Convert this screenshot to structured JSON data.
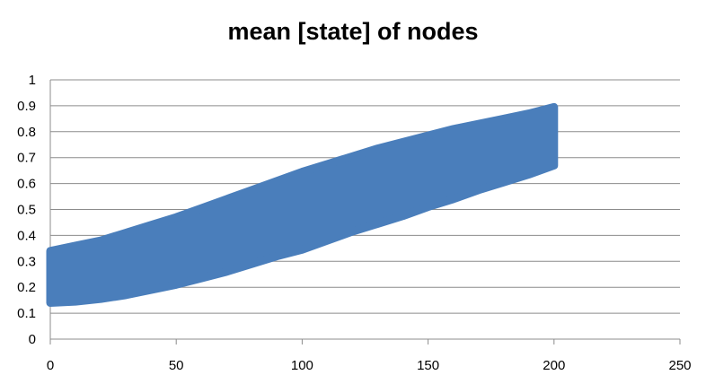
{
  "chart_data": {
    "type": "area",
    "title": "mean [state] of nodes",
    "xlabel": "",
    "ylabel": "",
    "xlim": [
      0,
      250
    ],
    "ylim": [
      0,
      1
    ],
    "x_ticks": [
      0,
      50,
      100,
      150,
      200,
      250
    ],
    "y_ticks": [
      0,
      0.1,
      0.2,
      0.3,
      0.4,
      0.5,
      0.6,
      0.7,
      0.8,
      0.9,
      1
    ],
    "x_tick_labels": [
      "0",
      "50",
      "100",
      "150",
      "200",
      "250"
    ],
    "y_tick_labels": [
      "0",
      "0.1",
      "0.2",
      "0.3",
      "0.4",
      "0.5",
      "0.6",
      "0.7",
      "0.8",
      "0.9",
      "1"
    ],
    "grid": "horizontal",
    "legend": "none",
    "series_color": "#4a7ebb",
    "band": {
      "x": [
        0,
        10,
        20,
        30,
        40,
        50,
        60,
        70,
        80,
        90,
        100,
        110,
        120,
        130,
        140,
        150,
        160,
        170,
        180,
        190,
        200
      ],
      "upper": [
        0.34,
        0.36,
        0.38,
        0.41,
        0.44,
        0.47,
        0.505,
        0.54,
        0.575,
        0.61,
        0.645,
        0.675,
        0.705,
        0.735,
        0.76,
        0.785,
        0.81,
        0.83,
        0.85,
        0.87,
        0.895
      ],
      "lower": [
        0.14,
        0.145,
        0.155,
        0.17,
        0.19,
        0.21,
        0.235,
        0.26,
        0.29,
        0.32,
        0.345,
        0.38,
        0.415,
        0.445,
        0.475,
        0.51,
        0.54,
        0.575,
        0.605,
        0.635,
        0.67
      ]
    }
  }
}
